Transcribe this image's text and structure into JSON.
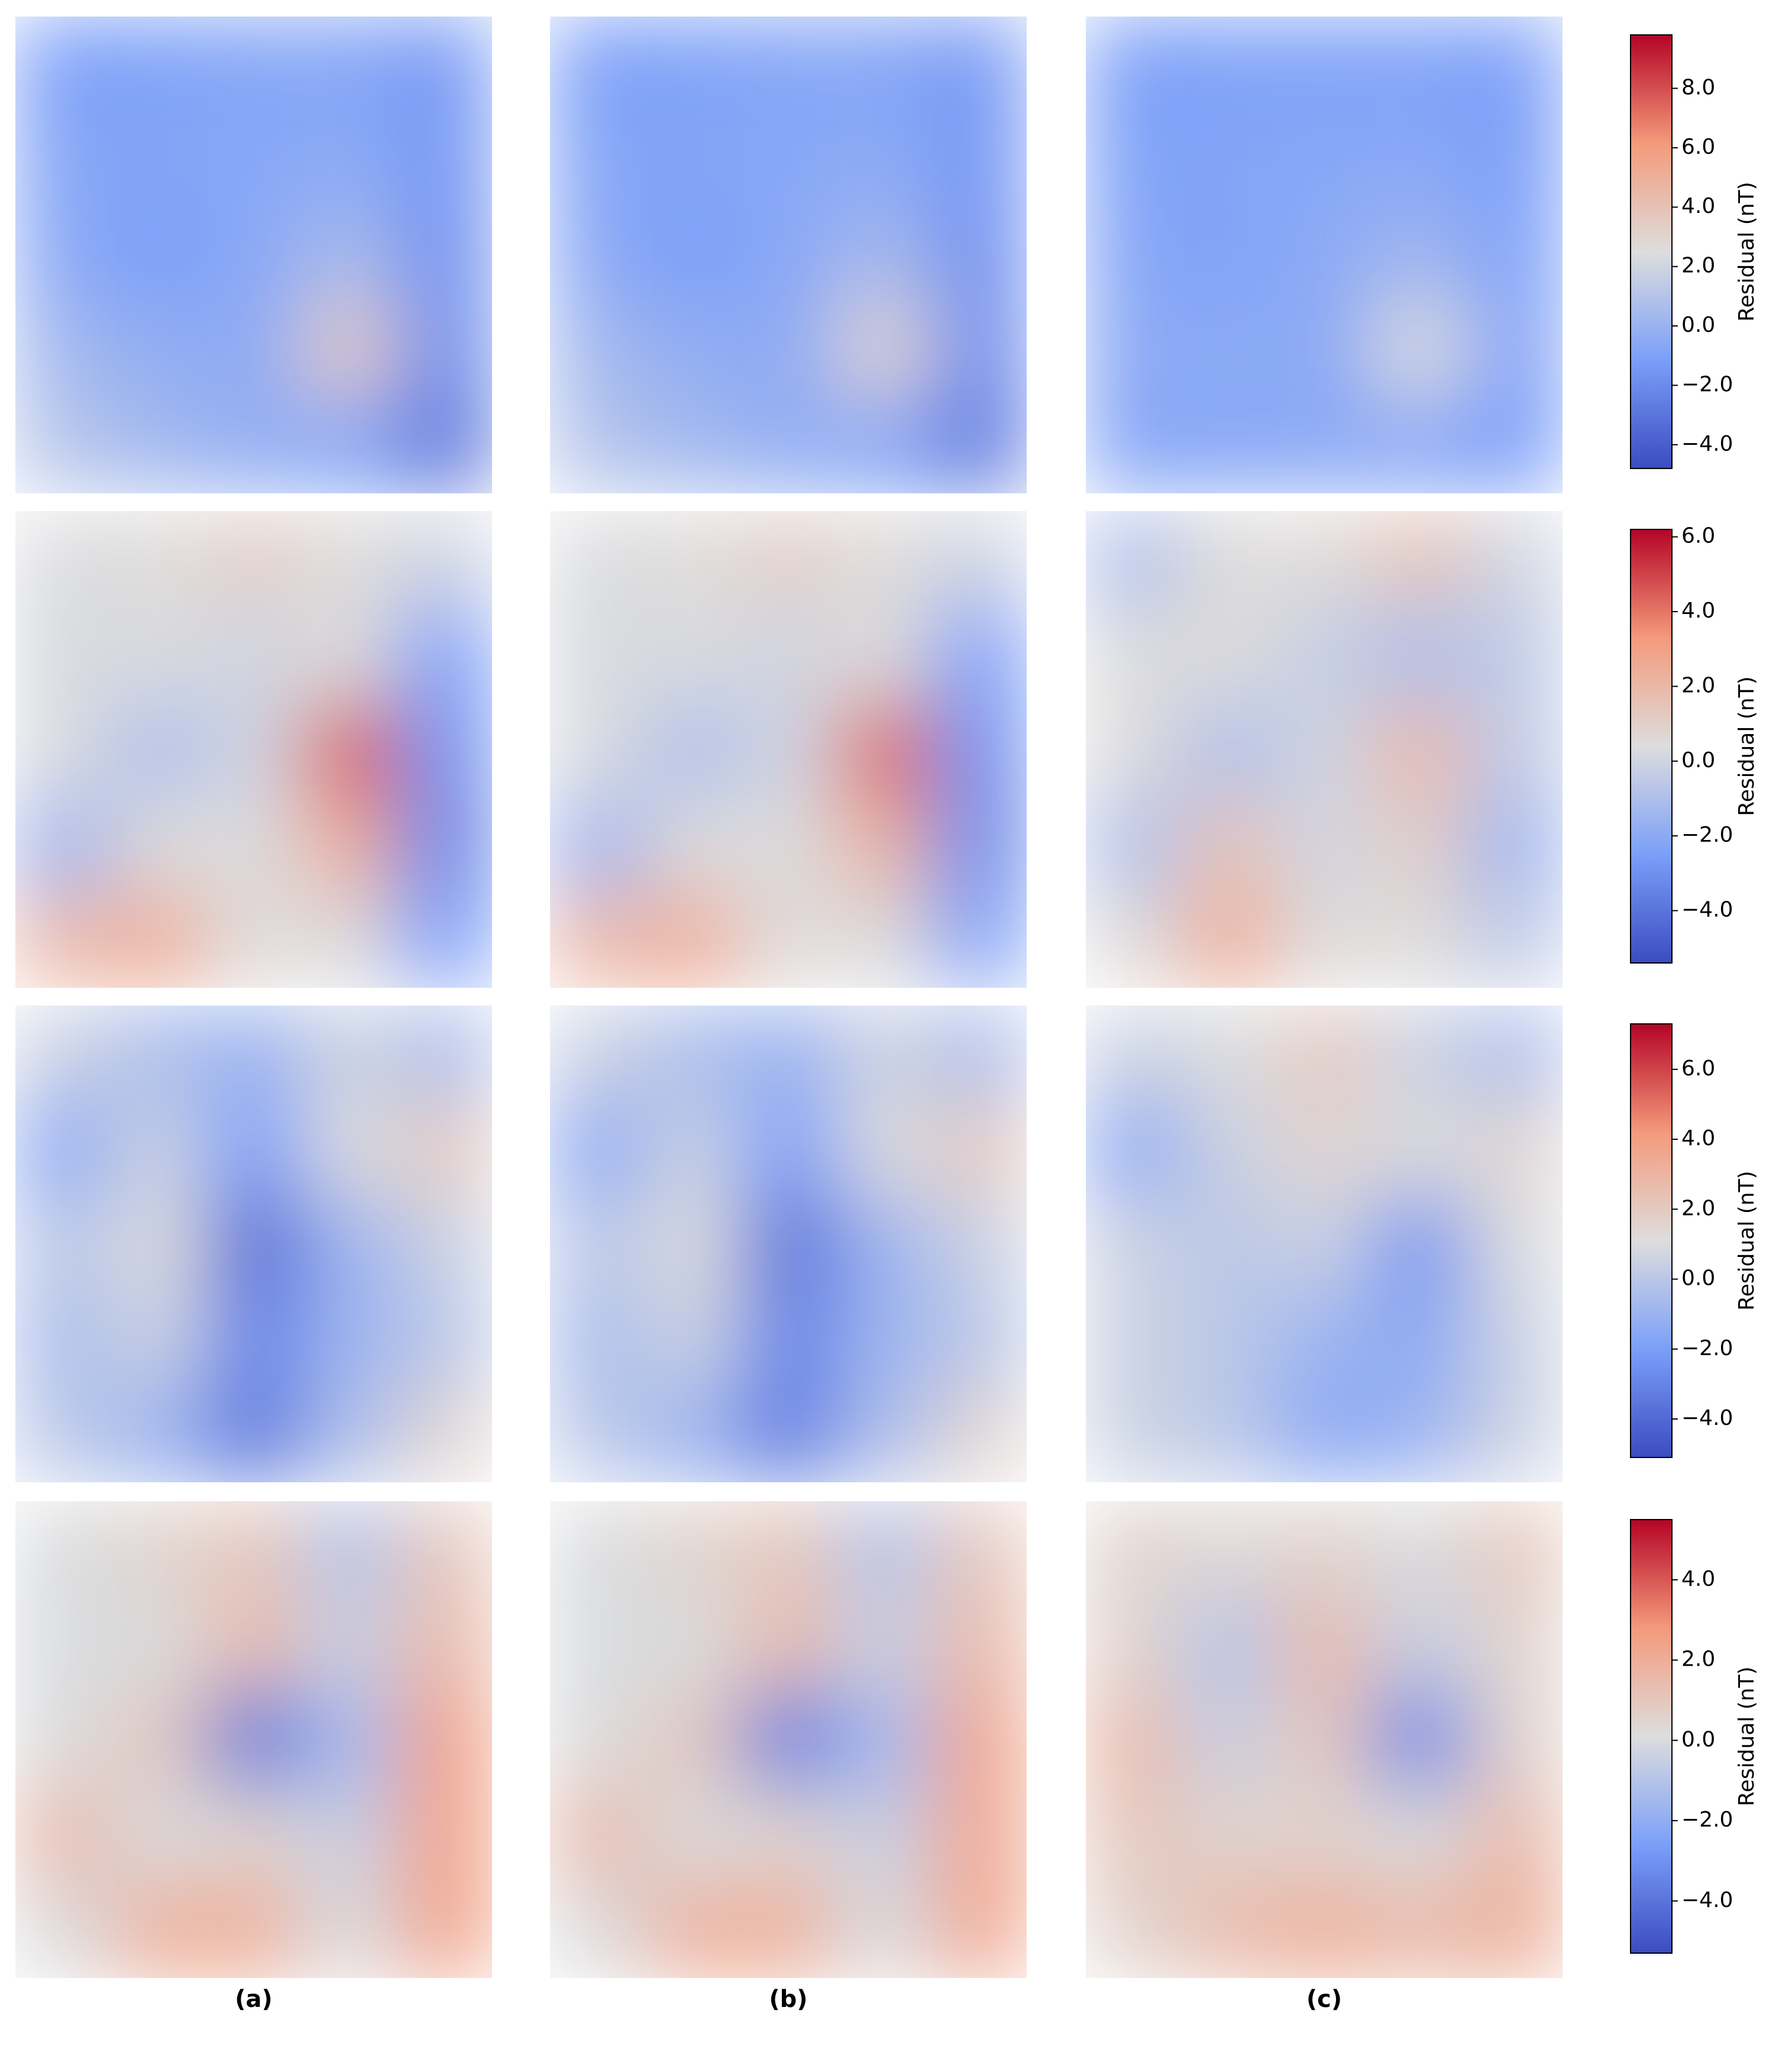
{
  "column_labels": [
    "(a)",
    "(b)",
    "(c)"
  ],
  "chart_data": [
    {
      "type": "heatmap",
      "colorbar_label": "Residual (nT)",
      "vlim": [
        -4.8,
        9.8
      ],
      "ticks": [
        {
          "value": -4,
          "label": "−4.0"
        },
        {
          "value": -2,
          "label": "−2.0"
        },
        {
          "value": 0,
          "label": "0.0"
        },
        {
          "value": 2,
          "label": "2.0"
        },
        {
          "value": 4,
          "label": "4.0"
        },
        {
          "value": 6,
          "label": "6.0"
        },
        {
          "value": 8,
          "label": "8.0"
        }
      ],
      "panels": [
        [
          [
            -1.2,
            -1.0,
            -0.8,
            -0.8,
            -1.5
          ],
          [
            -0.8,
            -0.8,
            -0.7,
            -0.5,
            -1.5
          ],
          [
            -0.6,
            -1.2,
            -0.6,
            0.5,
            -1.8
          ],
          [
            0.3,
            -0.3,
            -0.5,
            3.5,
            -2.0
          ],
          [
            1.0,
            0.3,
            -0.3,
            -0.8,
            -3.0
          ]
        ],
        [
          [
            -1.2,
            -1.0,
            -0.8,
            -0.8,
            -1.5
          ],
          [
            -0.8,
            -0.8,
            -0.7,
            -0.5,
            -1.5
          ],
          [
            -0.6,
            -1.2,
            -0.6,
            0.4,
            -1.8
          ],
          [
            0.3,
            -0.3,
            -0.5,
            3.0,
            -2.0
          ],
          [
            0.9,
            0.3,
            -0.3,
            -0.8,
            -2.8
          ]
        ],
        [
          [
            -1.2,
            -1.0,
            -1.0,
            -1.0,
            -1.2
          ],
          [
            -1.0,
            -0.8,
            -0.7,
            -0.6,
            -1.2
          ],
          [
            -0.8,
            -0.9,
            -0.5,
            0.2,
            -1.0
          ],
          [
            -0.6,
            -0.5,
            -0.6,
            2.5,
            -0.9
          ],
          [
            -0.8,
            -0.7,
            -0.6,
            -0.7,
            -1.2
          ]
        ]
      ]
    },
    {
      "type": "heatmap",
      "colorbar_label": "Residual (nT)",
      "vlim": [
        -5.4,
        6.2
      ],
      "ticks": [
        {
          "value": -4,
          "label": "−4.0"
        },
        {
          "value": -2,
          "label": "−2.0"
        },
        {
          "value": 0,
          "label": "0.0"
        },
        {
          "value": 2,
          "label": "2.0"
        },
        {
          "value": 4,
          "label": "4.0"
        },
        {
          "value": 6,
          "label": "6.0"
        }
      ],
      "panels": [
        [
          [
            0.3,
            0.5,
            1.0,
            0.5,
            0.0
          ],
          [
            0.2,
            0.3,
            0.0,
            0.5,
            -2.5
          ],
          [
            0.3,
            -1.0,
            0.0,
            4.5,
            -3.0
          ],
          [
            -1.5,
            0.5,
            0.3,
            2.5,
            -3.5
          ],
          [
            2.0,
            2.5,
            0.5,
            0.5,
            -2.5
          ]
        ],
        [
          [
            0.3,
            0.5,
            1.0,
            0.5,
            0.0
          ],
          [
            0.2,
            0.3,
            0.0,
            0.5,
            -2.5
          ],
          [
            0.3,
            -1.0,
            0.0,
            4.3,
            -3.0
          ],
          [
            -1.5,
            0.5,
            0.3,
            2.3,
            -3.3
          ],
          [
            2.0,
            2.5,
            0.5,
            0.5,
            -2.3
          ]
        ],
        [
          [
            -1.0,
            0.5,
            0.5,
            1.5,
            0.0
          ],
          [
            0.3,
            0.5,
            -0.3,
            -1.0,
            -0.5
          ],
          [
            0.5,
            -1.0,
            0.0,
            2.0,
            -0.5
          ],
          [
            -1.0,
            1.5,
            0.0,
            1.0,
            -1.5
          ],
          [
            0.5,
            2.5,
            0.5,
            0.5,
            -0.5
          ]
        ]
      ]
    },
    {
      "type": "heatmap",
      "colorbar_label": "Residual (nT)",
      "vlim": [
        -5.1,
        7.3
      ],
      "ticks": [
        {
          "value": -4,
          "label": "−4.0"
        },
        {
          "value": -2,
          "label": "−2.0"
        },
        {
          "value": 0,
          "label": "0.0"
        },
        {
          "value": 2,
          "label": "2.0"
        },
        {
          "value": 4,
          "label": "4.0"
        },
        {
          "value": 6,
          "label": "6.0"
        }
      ],
      "panels": [
        [
          [
            0.5,
            -0.5,
            -1.0,
            0.5,
            -0.5
          ],
          [
            -1.5,
            0.5,
            -2.0,
            1.0,
            2.0
          ],
          [
            0.0,
            1.0,
            -4.0,
            -1.0,
            0.5
          ],
          [
            -0.5,
            0.5,
            -3.0,
            -1.0,
            0.0
          ],
          [
            0.0,
            -1.0,
            -3.5,
            -0.5,
            1.5
          ]
        ],
        [
          [
            0.5,
            -0.5,
            -1.0,
            0.5,
            -0.5
          ],
          [
            -1.5,
            0.5,
            -2.0,
            1.0,
            2.0
          ],
          [
            0.0,
            1.0,
            -3.8,
            -1.0,
            0.5
          ],
          [
            -0.5,
            0.5,
            -3.0,
            -1.0,
            0.0
          ],
          [
            0.0,
            -1.0,
            -3.3,
            -0.5,
            1.5
          ]
        ],
        [
          [
            0.5,
            1.0,
            2.0,
            0.5,
            -0.5
          ],
          [
            -1.5,
            0.5,
            1.5,
            1.0,
            1.5
          ],
          [
            0.5,
            0.0,
            0.5,
            -2.5,
            1.0
          ],
          [
            0.5,
            0.0,
            -1.0,
            -1.5,
            0.5
          ],
          [
            0.5,
            0.0,
            -1.5,
            -1.0,
            0.5
          ]
        ]
      ]
    },
    {
      "type": "heatmap",
      "colorbar_label": "Residual (nT)",
      "vlim": [
        -5.3,
        5.5
      ],
      "ticks": [
        {
          "value": -4,
          "label": "−4.0"
        },
        {
          "value": -2,
          "label": "−2.0"
        },
        {
          "value": 0,
          "label": "0.0"
        },
        {
          "value": 2,
          "label": "2.0"
        },
        {
          "value": 4,
          "label": "4.0"
        }
      ],
      "panels": [
        [
          [
            0.0,
            0.5,
            1.0,
            -1.0,
            1.0
          ],
          [
            0.0,
            0.0,
            1.5,
            -0.5,
            1.5
          ],
          [
            0.0,
            1.0,
            -4.0,
            -1.5,
            2.5
          ],
          [
            1.5,
            0.0,
            0.5,
            -0.5,
            2.5
          ],
          [
            0.0,
            2.0,
            2.0,
            0.0,
            2.5
          ]
        ],
        [
          [
            0.0,
            0.5,
            1.0,
            -1.0,
            1.0
          ],
          [
            0.0,
            0.0,
            1.5,
            -0.5,
            1.5
          ],
          [
            0.0,
            1.0,
            -3.8,
            -1.5,
            2.3
          ],
          [
            1.5,
            0.0,
            0.5,
            -0.5,
            2.3
          ],
          [
            0.0,
            2.0,
            2.0,
            0.0,
            2.3
          ]
        ],
        [
          [
            0.5,
            0.3,
            0.5,
            0.0,
            1.0
          ],
          [
            0.5,
            -1.0,
            1.5,
            -0.5,
            0.5
          ],
          [
            1.5,
            -0.5,
            1.0,
            -3.5,
            0.5
          ],
          [
            1.0,
            0.5,
            0.5,
            0.0,
            1.5
          ],
          [
            0.5,
            1.5,
            2.0,
            1.5,
            2.0
          ]
        ]
      ]
    }
  ]
}
